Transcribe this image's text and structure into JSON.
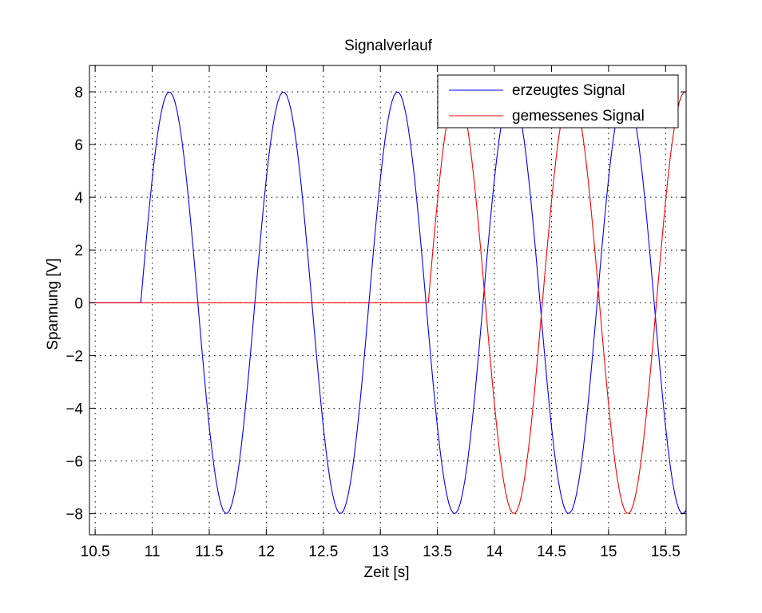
{
  "chart_data": {
    "type": "line",
    "title": "Signalverlauf",
    "xlabel": "Zeit [s]",
    "ylabel": "Spannung [V]",
    "xlim": [
      10.45,
      15.68
    ],
    "ylim": [
      -8.8,
      9.0
    ],
    "xticks": [
      10.5,
      11,
      11.5,
      12,
      12.5,
      13,
      13.5,
      14,
      14.5,
      15,
      15.5
    ],
    "xtick_labels": [
      "10.5",
      "11",
      "11.5",
      "12",
      "12.5",
      "13",
      "13.5",
      "14",
      "14.5",
      "15",
      "15.5"
    ],
    "yticks": [
      8,
      6,
      4,
      2,
      0,
      -2,
      -4,
      -6,
      -8
    ],
    "ytick_labels": [
      "8",
      "6",
      "4",
      "2",
      "0",
      "−2",
      "−4",
      "−6",
      "−8"
    ],
    "grid": true,
    "legend_position": "top-right",
    "series": [
      {
        "name": "erzeugtes Signal",
        "color": "#0000ff",
        "amplitude": 8,
        "frequency_hz": 1,
        "onset_s": 10.9,
        "peak_time_s": 11.15,
        "step_s": 0.02
      },
      {
        "name": "gemessenes Signal",
        "color": "#ff0000",
        "amplitude": 8,
        "frequency_hz": 1,
        "onset_s": 13.42,
        "peak_time_s": 13.67,
        "step_s": 0.02
      }
    ]
  }
}
